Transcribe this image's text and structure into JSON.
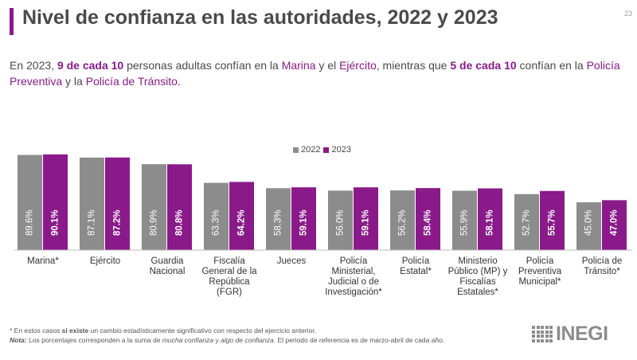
{
  "header": {
    "title": "Nivel de confianza en las autoridades, 2022 y 2023",
    "page_number": "23"
  },
  "intro": {
    "p1": "En 2023, ",
    "b1": "9 de cada 10",
    "p2": " personas adultas confían en la ",
    "h1": "Marina",
    "p3": " y el ",
    "h2": "Ejército",
    "p4": ", mientras que ",
    "b2": "5 de cada 10",
    "p5": " confían en la ",
    "h3": "Policía Preventiva",
    "p6": " y la ",
    "h4": "Policía de Tránsito",
    "p7": "."
  },
  "colors": {
    "accent": "#8a1a8a",
    "series_2022": "#8c8c8c",
    "series_2023": "#8a1a8a"
  },
  "chart_data": {
    "type": "bar",
    "title": "",
    "xlabel": "",
    "ylabel": "",
    "ylim": [
      0,
      100
    ],
    "legend_position": "top-center",
    "categories": [
      "Marina*",
      "Ejército",
      "Guardia Nacional",
      "Fiscalía General de la República (FGR)",
      "Jueces",
      "Policía Ministerial, Judicial o de Investigación*",
      "Policía Estatal*",
      "Ministerio Público (MP) y Fiscalías Estatales*",
      "Policía Preventiva Municipal*",
      "Policía de Tránsito*"
    ],
    "series": [
      {
        "name": "2022",
        "values": [
          89.6,
          87.1,
          80.9,
          63.3,
          58.3,
          56.0,
          56.2,
          55.9,
          52.7,
          45.0
        ],
        "labels": [
          "89.6%",
          "87.1%",
          "80.9%",
          "63.3%",
          "58.3%",
          "56.0%",
          "56.2%",
          "55.9%",
          "52.7%",
          "45.0%"
        ]
      },
      {
        "name": "2023",
        "values": [
          90.1,
          87.2,
          80.8,
          64.2,
          59.1,
          59.1,
          58.4,
          58.1,
          55.7,
          47.0
        ],
        "labels": [
          "90.1%",
          "87.2%",
          "80.8%",
          "64.2%",
          "59.1%",
          "59.1%",
          "58.4%",
          "58.1%",
          "55.7%",
          "47.0%"
        ]
      }
    ]
  },
  "footnotes": {
    "line1_a": "* En estos casos ",
    "line1_b": "si existe",
    "line1_c": " un cambio estadísticamente significativo con respecto del ejercicio anterior.",
    "line2_a": "Nota:",
    "line2_b": " Los porcentajes corresponden a la suma de ",
    "line2_c": "mucha confianza",
    "line2_d": " y ",
    "line2_e": "algo de confianza",
    "line2_f": ". El periodo de referencia es de marzo-abril de cada año."
  },
  "logo": {
    "text": "INEGI"
  }
}
